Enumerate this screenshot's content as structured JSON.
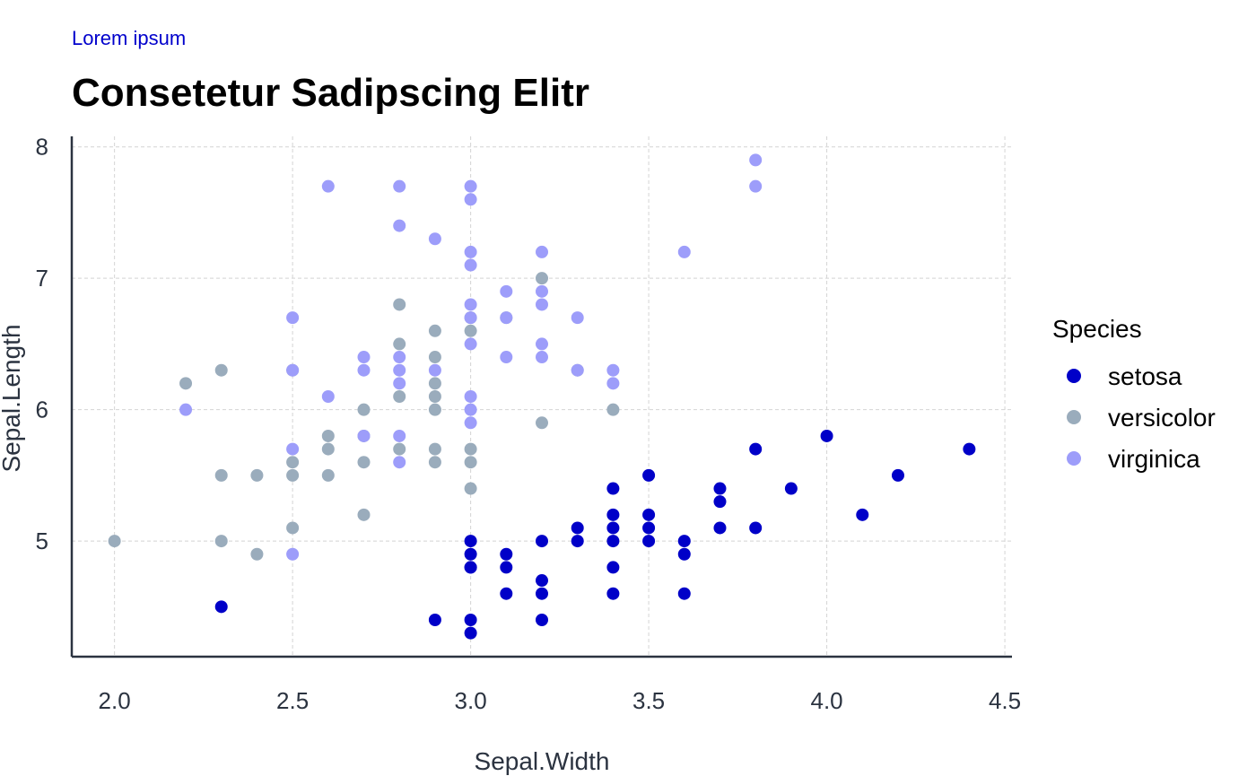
{
  "chart_data": {
    "type": "scatter",
    "caption": "Lorem ipsum",
    "title": "Consetetur Sadipscing Elitr",
    "xlabel": "Sepal.Width",
    "ylabel": "Sepal.Length",
    "xlim": [
      1.88,
      4.52
    ],
    "ylim": [
      4.12,
      8.08
    ],
    "xticks": [
      "2.0",
      "2.5",
      "3.0",
      "3.5",
      "4.0",
      "4.5"
    ],
    "yticks": [
      "5",
      "6",
      "7",
      "8"
    ],
    "grid": true,
    "legend": {
      "title": "Species",
      "position": "right"
    },
    "series": [
      {
        "name": "setosa",
        "color": "#0000c8",
        "points": [
          [
            2.3,
            4.5
          ],
          [
            2.9,
            4.4
          ],
          [
            3.0,
            5.0
          ],
          [
            3.0,
            4.9
          ],
          [
            3.0,
            4.8
          ],
          [
            3.0,
            4.8
          ],
          [
            3.0,
            4.4
          ],
          [
            3.0,
            4.3
          ],
          [
            3.1,
            4.9
          ],
          [
            3.1,
            4.8
          ],
          [
            3.1,
            4.6
          ],
          [
            3.2,
            5.0
          ],
          [
            3.2,
            4.7
          ],
          [
            3.2,
            4.6
          ],
          [
            3.2,
            4.4
          ],
          [
            3.3,
            5.1
          ],
          [
            3.3,
            5.0
          ],
          [
            3.4,
            5.4
          ],
          [
            3.4,
            5.2
          ],
          [
            3.4,
            5.1
          ],
          [
            3.4,
            5.0
          ],
          [
            3.4,
            4.8
          ],
          [
            3.4,
            4.6
          ],
          [
            3.5,
            5.5
          ],
          [
            3.5,
            5.2
          ],
          [
            3.5,
            5.1
          ],
          [
            3.5,
            5.0
          ],
          [
            3.6,
            5.0
          ],
          [
            3.6,
            4.9
          ],
          [
            3.6,
            4.6
          ],
          [
            3.7,
            5.4
          ],
          [
            3.7,
            5.3
          ],
          [
            3.7,
            5.1
          ],
          [
            3.8,
            5.7
          ],
          [
            3.8,
            5.1
          ],
          [
            3.9,
            5.4
          ],
          [
            4.0,
            5.8
          ],
          [
            4.1,
            5.2
          ],
          [
            4.2,
            5.5
          ],
          [
            4.4,
            5.7
          ]
        ]
      },
      {
        "name": "versicolor",
        "color": "#9aacbc",
        "points": [
          [
            2.0,
            5.0
          ],
          [
            2.2,
            6.2
          ],
          [
            2.3,
            6.3
          ],
          [
            2.3,
            5.5
          ],
          [
            2.3,
            5.0
          ],
          [
            2.4,
            5.5
          ],
          [
            2.4,
            4.9
          ],
          [
            2.5,
            5.6
          ],
          [
            2.5,
            5.5
          ],
          [
            2.5,
            5.1
          ],
          [
            2.5,
            6.3
          ],
          [
            2.6,
            5.8
          ],
          [
            2.6,
            5.7
          ],
          [
            2.6,
            5.5
          ],
          [
            2.7,
            6.0
          ],
          [
            2.7,
            5.8
          ],
          [
            2.7,
            5.6
          ],
          [
            2.7,
            5.2
          ],
          [
            2.8,
            6.8
          ],
          [
            2.8,
            6.5
          ],
          [
            2.8,
            6.1
          ],
          [
            2.8,
            5.7
          ],
          [
            2.9,
            6.6
          ],
          [
            2.9,
            6.4
          ],
          [
            2.9,
            6.2
          ],
          [
            2.9,
            6.1
          ],
          [
            2.9,
            6.0
          ],
          [
            2.9,
            5.7
          ],
          [
            2.9,
            5.6
          ],
          [
            3.0,
            6.7
          ],
          [
            3.0,
            6.6
          ],
          [
            3.0,
            5.7
          ],
          [
            3.0,
            5.6
          ],
          [
            3.0,
            5.4
          ],
          [
            3.1,
            6.7
          ],
          [
            3.2,
            7.0
          ],
          [
            3.2,
            5.9
          ],
          [
            3.3,
            6.3
          ],
          [
            3.4,
            6.0
          ]
        ]
      },
      {
        "name": "virginica",
        "color": "#9d9dfa",
        "points": [
          [
            2.2,
            6.0
          ],
          [
            2.5,
            6.7
          ],
          [
            2.5,
            6.3
          ],
          [
            2.5,
            5.7
          ],
          [
            2.5,
            4.9
          ],
          [
            2.6,
            7.7
          ],
          [
            2.6,
            6.1
          ],
          [
            2.7,
            6.4
          ],
          [
            2.7,
            6.3
          ],
          [
            2.7,
            5.8
          ],
          [
            2.8,
            7.7
          ],
          [
            2.8,
            7.4
          ],
          [
            2.8,
            6.4
          ],
          [
            2.8,
            6.3
          ],
          [
            2.8,
            6.2
          ],
          [
            2.8,
            5.8
          ],
          [
            2.8,
            5.6
          ],
          [
            2.9,
            7.3
          ],
          [
            2.9,
            6.3
          ],
          [
            3.0,
            7.7
          ],
          [
            3.0,
            7.6
          ],
          [
            3.0,
            7.2
          ],
          [
            3.0,
            7.1
          ],
          [
            3.0,
            6.8
          ],
          [
            3.0,
            6.7
          ],
          [
            3.0,
            6.5
          ],
          [
            3.0,
            6.1
          ],
          [
            3.0,
            6.0
          ],
          [
            3.0,
            5.9
          ],
          [
            3.1,
            6.9
          ],
          [
            3.1,
            6.7
          ],
          [
            3.1,
            6.4
          ],
          [
            3.2,
            7.2
          ],
          [
            3.2,
            6.9
          ],
          [
            3.2,
            6.8
          ],
          [
            3.2,
            6.5
          ],
          [
            3.2,
            6.4
          ],
          [
            3.3,
            6.7
          ],
          [
            3.3,
            6.3
          ],
          [
            3.4,
            6.3
          ],
          [
            3.4,
            6.2
          ],
          [
            3.6,
            7.2
          ],
          [
            3.8,
            7.9
          ],
          [
            3.8,
            7.7
          ]
        ]
      }
    ]
  }
}
